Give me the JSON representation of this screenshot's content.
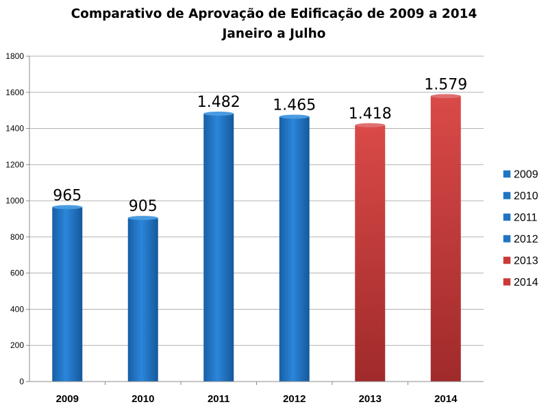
{
  "chart_data": {
    "type": "bar",
    "title": "Comparativo de Aprovação de Edificação de 2009 a 2014",
    "subtitle": "Janeiro a Julho",
    "xlabel": "",
    "ylabel": "",
    "categories": [
      "2009",
      "2010",
      "2011",
      "2012",
      "2013",
      "2014"
    ],
    "values": [
      965,
      905,
      1482,
      1465,
      1418,
      1579
    ],
    "data_labels": [
      "965",
      "905",
      "1.482",
      "1.465",
      "1.418",
      "1.579"
    ],
    "bar_colors": [
      "#1f74c4",
      "#1f74c4",
      "#1f74c4",
      "#1f74c4",
      "#c93a3a",
      "#c93a3a"
    ],
    "ylim": [
      0,
      1800
    ],
    "yticks": [
      0,
      200,
      400,
      600,
      800,
      1000,
      1200,
      1400,
      1600,
      1800
    ],
    "grid": true,
    "legend": {
      "position": "right",
      "entries": [
        {
          "label": "2009",
          "color": "#1f74c4"
        },
        {
          "label": "2010",
          "color": "#1f74c4"
        },
        {
          "label": "2011",
          "color": "#1f74c4"
        },
        {
          "label": "2012",
          "color": "#1f74c4"
        },
        {
          "label": "2013",
          "color": "#c93a3a"
        },
        {
          "label": "2014",
          "color": "#c93a3a"
        }
      ]
    }
  }
}
